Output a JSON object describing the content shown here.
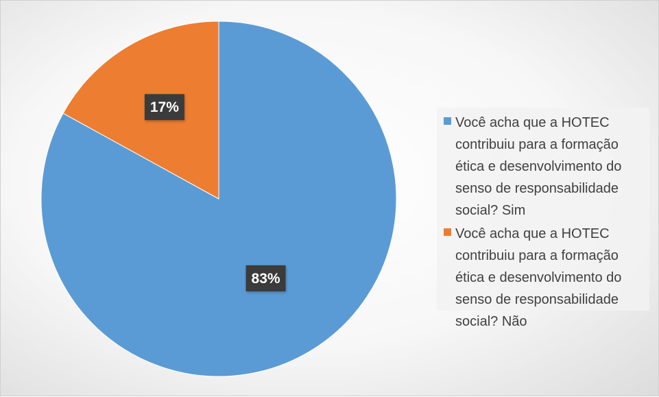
{
  "chart_data": {
    "type": "pie",
    "title": "",
    "slices": [
      {
        "label": "Você acha que a HOTEC contribuiu para a formação ética e desenvolvimento do senso de responsabilidade social? Sim",
        "value": 83,
        "display": "83%",
        "color": "#5b9bd5"
      },
      {
        "label": "Você acha que a HOTEC contribuiu para a formação ética e desenvolvimento do senso de responsabilidade social? Não",
        "value": 17,
        "display": "17%",
        "color": "#ed7d31"
      }
    ],
    "legend_position": "right",
    "data_labels": "percent"
  }
}
